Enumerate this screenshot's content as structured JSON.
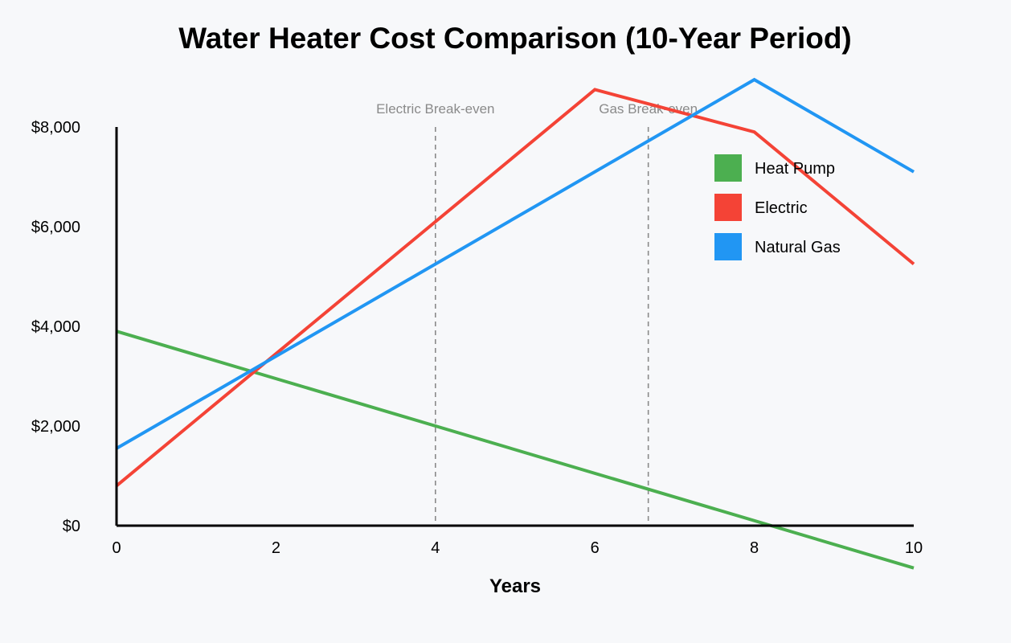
{
  "chart_data": {
    "type": "line",
    "title": "Water Heater Cost Comparison (10-Year Period)",
    "xlabel": "Years",
    "ylabel": "",
    "xlim": [
      0,
      10
    ],
    "ylim": [
      0,
      8000
    ],
    "x_ticks": [
      0,
      2,
      4,
      6,
      8,
      10
    ],
    "x_tick_labels": [
      "0",
      "2",
      "4",
      "6",
      "8",
      "10"
    ],
    "y_ticks": [
      0,
      2000,
      4000,
      6000,
      8000
    ],
    "y_tick_labels": [
      "$0",
      "$2,000",
      "$4,000",
      "$6,000",
      "$8,000"
    ],
    "grid": false,
    "legend_position": "top-right",
    "series": [
      {
        "name": "Heat Pump",
        "color": "#4caf50",
        "points": [
          [
            0,
            3900
          ],
          [
            10,
            -850
          ]
        ]
      },
      {
        "name": "Electric",
        "color": "#f44336",
        "points": [
          [
            0,
            800
          ],
          [
            6,
            8750
          ],
          [
            8,
            7900
          ],
          [
            10,
            5250
          ]
        ]
      },
      {
        "name": "Natural Gas",
        "color": "#2196f3",
        "points": [
          [
            0,
            1550
          ],
          [
            8,
            8950
          ],
          [
            10,
            7100
          ]
        ]
      }
    ],
    "annotations": [
      {
        "label": "Electric Break-even",
        "x": 4,
        "type": "vertical-dashed-line"
      },
      {
        "label": "Gas Break-even",
        "x": 6.67,
        "type": "vertical-dashed-line"
      }
    ]
  }
}
